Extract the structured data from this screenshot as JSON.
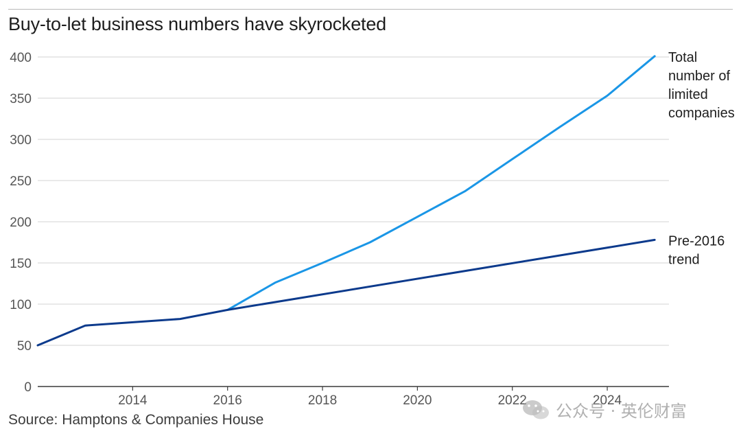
{
  "title": "Buy-to-let business numbers have skyrocketed",
  "source": "Source: Hamptons & Companies House",
  "watermark": "公众号 · 英伦财富",
  "colors": {
    "total": "#1a96e6",
    "trend": "#0c3a8c",
    "axis": "#3a3a3a",
    "grid": "#dcdcdc",
    "text": "#2a2a2a"
  },
  "chart_data": {
    "type": "line",
    "title": "Buy-to-let business numbers have skyrocketed",
    "xlabel": "",
    "ylabel": "",
    "xlim": [
      2012,
      2025.3
    ],
    "ylim": [
      0,
      400
    ],
    "y_ticks": [
      0,
      50,
      100,
      150,
      200,
      250,
      300,
      350,
      400
    ],
    "x_ticks": [
      2014,
      2016,
      2018,
      2020,
      2022,
      2024
    ],
    "grid": true,
    "series": [
      {
        "name": "Total number of limited companies",
        "label_lines": [
          "Total",
          "number of",
          "limited",
          "companies"
        ],
        "color": "#1a96e6",
        "x": [
          2016,
          2017,
          2018,
          2019,
          2020,
          2021,
          2022,
          2023,
          2024,
          2025
        ],
        "y": [
          93,
          126,
          150,
          175,
          206,
          237,
          276,
          315,
          353,
          401
        ]
      },
      {
        "name": "Pre-2016 trend",
        "label_lines": [
          "Pre-2016",
          "trend"
        ],
        "color": "#0c3a8c",
        "x": [
          2012,
          2013,
          2015,
          2016,
          2025
        ],
        "y": [
          50,
          74,
          82,
          93,
          178
        ]
      }
    ]
  }
}
